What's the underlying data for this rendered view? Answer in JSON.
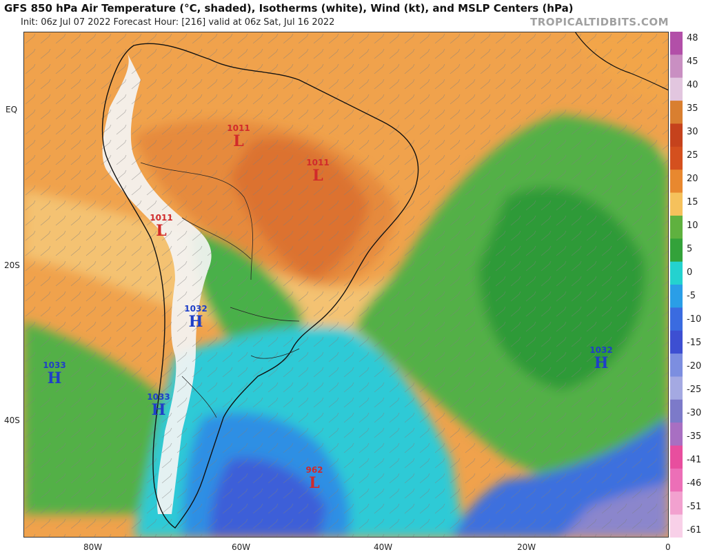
{
  "header": {
    "title": "GFS 850 hPa Air Temperature (°C, shaded), Isotherms (white), Wind (kt), and MSLP Centers (hPa)",
    "subtitle": "Init: 06z Jul 07 2022   Forecast Hour: [216]   valid at 06z Sat, Jul 16 2022",
    "credit": "TROPICALTIDBITS.COM"
  },
  "axes": {
    "lat_labels": [
      "EQ",
      "20S",
      "40S"
    ],
    "lon_labels": [
      "80W",
      "60W",
      "40W",
      "20W",
      "0"
    ]
  },
  "colorbar": {
    "ticks": [
      "48",
      "45",
      "40",
      "35",
      "30",
      "25",
      "20",
      "15",
      "10",
      "5",
      "0",
      "-5",
      "-10",
      "-15",
      "-20",
      "-25",
      "-30",
      "-35",
      "-41",
      "-46",
      "-51",
      "-61"
    ],
    "colors": [
      "#b24fa8",
      "#c98fc2",
      "#e2c6df",
      "#d97f30",
      "#c5421c",
      "#d4501e",
      "#e8882f",
      "#f5c15c",
      "#5fb13f",
      "#33a23a",
      "#24d2cf",
      "#2a9ee7",
      "#3a6be0",
      "#3d4fd2",
      "#7c8ee0",
      "#a4a9e2",
      "#7c7ac9",
      "#a86fc2",
      "#e84e9e",
      "#ec6fb7",
      "#f2a1cf",
      "#f8d0e8"
    ]
  },
  "pressure_centers": [
    {
      "type": "L",
      "value": "1011",
      "color": "#d12a2a"
    },
    {
      "type": "L",
      "value": "1011",
      "color": "#d12a2a"
    },
    {
      "type": "L",
      "value": "1011",
      "color": "#d12a2a"
    },
    {
      "type": "H",
      "value": "1032",
      "color": "#1f3fc8"
    },
    {
      "type": "H",
      "value": "1033",
      "color": "#1f3fc8"
    },
    {
      "type": "H",
      "value": "1033",
      "color": "#1f3fc8"
    },
    {
      "type": "H",
      "value": "1032",
      "color": "#1f3fc8"
    },
    {
      "type": "L",
      "value": "962",
      "color": "#d12a2a"
    }
  ],
  "field_colors": {
    "tropics": "#f0a24c",
    "warm_core": "#d2632a",
    "pale": "#f5c878",
    "green": "#53b046",
    "green_dark": "#2f9a38",
    "cyan": "#2ecad6",
    "blue": "#2f8fe4",
    "deep_blue": "#3d5fd8",
    "land_white": "#f4f4f4"
  }
}
